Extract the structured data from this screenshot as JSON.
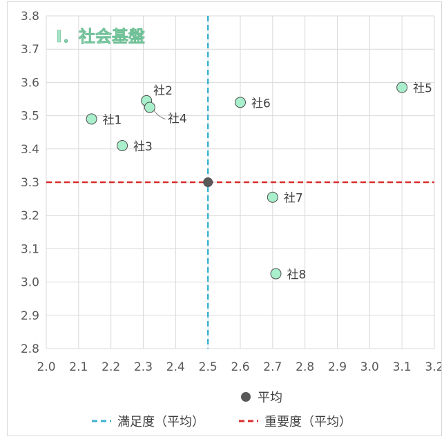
{
  "chart_data": {
    "type": "scatter",
    "title": "Ⅰ．社会基盤",
    "xlabel": "",
    "ylabel": "",
    "xlim": [
      2.0,
      3.2
    ],
    "ylim": [
      2.8,
      3.8
    ],
    "x_ticks": [
      "2.0",
      "2.1",
      "2.2",
      "2.3",
      "2.4",
      "2.5",
      "2.6",
      "2.7",
      "2.8",
      "2.9",
      "3.0",
      "3.1",
      "3.2"
    ],
    "y_ticks": [
      "2.8",
      "2.9",
      "3.0",
      "3.1",
      "3.2",
      "3.3",
      "3.4",
      "3.5",
      "3.6",
      "3.7",
      "3.8"
    ],
    "grid": true,
    "points": [
      {
        "label": "社1",
        "x": 2.14,
        "y": 3.49
      },
      {
        "label": "社2",
        "x": 2.31,
        "y": 3.545
      },
      {
        "label": "社3",
        "x": 2.235,
        "y": 3.41
      },
      {
        "label": "社4",
        "x": 2.32,
        "y": 3.525
      },
      {
        "label": "社5",
        "x": 3.1,
        "y": 3.585
      },
      {
        "label": "社6",
        "x": 2.6,
        "y": 3.54
      },
      {
        "label": "社7",
        "x": 2.7,
        "y": 3.255
      },
      {
        "label": "社8",
        "x": 2.71,
        "y": 3.025
      }
    ],
    "average_point": {
      "name": "平均",
      "x": 2.5,
      "y": 3.3
    },
    "satisfaction_avg": {
      "name": "満足度（平均）",
      "value": 2.5
    },
    "importance_avg": {
      "name": "重要度（平均）",
      "value": 3.3
    },
    "legend_placement": "bottom",
    "colors": {
      "point_fill": "#a9efcc",
      "point_stroke": "#4d4d4d",
      "average": "#595959",
      "satisfaction_line": "#3cb1d2",
      "importance_line": "#d92b2b",
      "grid": "#d9d9d9"
    }
  }
}
